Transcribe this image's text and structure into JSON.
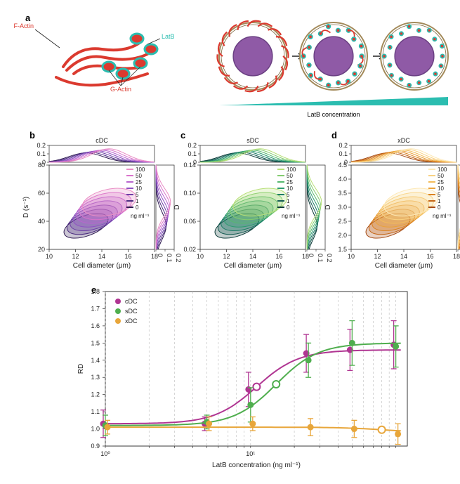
{
  "labels": {
    "a": "a",
    "b": "b",
    "c": "c",
    "d": "d",
    "e": "e",
    "factin": "F-Actin",
    "gactin": "G-Actin",
    "latb": "LatB",
    "latb_conc": "LatB concentration",
    "xaxis_diameter": "Cell diameter (μm)",
    "yaxis_D": "D (s⁻¹)",
    "yaxis_D_plain": "D",
    "ngml": "ng ml⁻¹",
    "xaxis_latb": "LatB concentration (ng ml⁻¹)",
    "yaxis_rd": "RD",
    "logtick": "10⁰",
    "logtick1": "10¹"
  },
  "panel_bcd": {
    "x_ticks": [
      "10",
      "12",
      "14",
      "16",
      "18"
    ],
    "dens_ticks": [
      "0",
      "0.1",
      "0.2"
    ],
    "b": {
      "title": "cDC",
      "y_ticks": [
        "20",
        "40",
        "60",
        "80"
      ],
      "colors": [
        "#2f1a52",
        "#4c2d80",
        "#6d3fa6",
        "#8f52c3",
        "#b865cf",
        "#d973cc",
        "#e98cc4"
      ],
      "legend": [
        "100",
        "50",
        "25",
        "10",
        "5",
        "1",
        "0"
      ]
    },
    "c": {
      "title": "sDC",
      "y_ticks": [
        "0.02",
        "0.06",
        "0.10",
        "0.14"
      ],
      "colors": [
        "#0d3b39",
        "#145b52",
        "#1d7c66",
        "#2d9c70",
        "#56b86f",
        "#83cc6f",
        "#b7df76"
      ],
      "legend": [
        "100",
        "50",
        "25",
        "10",
        "5",
        "1",
        "0"
      ]
    },
    "d": {
      "title": "xDC",
      "y_ticks": [
        "1.5",
        "2.0",
        "2.5",
        "3.0",
        "3.5",
        "4.0",
        "4.5"
      ],
      "colors": [
        "#a64a12",
        "#c46516",
        "#db8321",
        "#eaa23a",
        "#f3bc5a",
        "#f9d282",
        "#fde8b5"
      ],
      "legend": [
        "100",
        "50",
        "25",
        "10",
        "5",
        "1",
        "0"
      ]
    }
  },
  "panel_e": {
    "y_ticks": [
      "0.9",
      "1.0",
      "1.1",
      "1.2",
      "1.3",
      "1.4",
      "1.5",
      "1.6",
      "1.7",
      "1.8"
    ],
    "x_vals": [
      1,
      5,
      10,
      25,
      50,
      100
    ],
    "series": {
      "cDC": {
        "color": "#b03592",
        "vals": [
          1.03,
          1.03,
          1.23,
          1.44,
          1.46,
          1.49
        ],
        "err": [
          0.08,
          0.04,
          0.1,
          0.11,
          0.12,
          0.14
        ],
        "ec50": 11,
        "plateau": 1.46
      },
      "sDC": {
        "color": "#4fae4e",
        "vals": [
          1.02,
          1.04,
          1.14,
          1.4,
          1.5,
          1.48
        ],
        "err": [
          0.06,
          0.04,
          0.1,
          0.1,
          0.13,
          0.12
        ],
        "ec50": 15,
        "plateau": 1.5
      },
      "xDC": {
        "color": "#e8a63a",
        "vals": [
          1.01,
          1.03,
          1.03,
          1.01,
          1.0,
          0.97
        ],
        "err": [
          0.04,
          0.04,
          0.04,
          0.05,
          0.05,
          0.06
        ],
        "ec50": 80,
        "plateau": 0.98
      }
    },
    "legend": [
      "cDC",
      "sDC",
      "xDC"
    ]
  }
}
